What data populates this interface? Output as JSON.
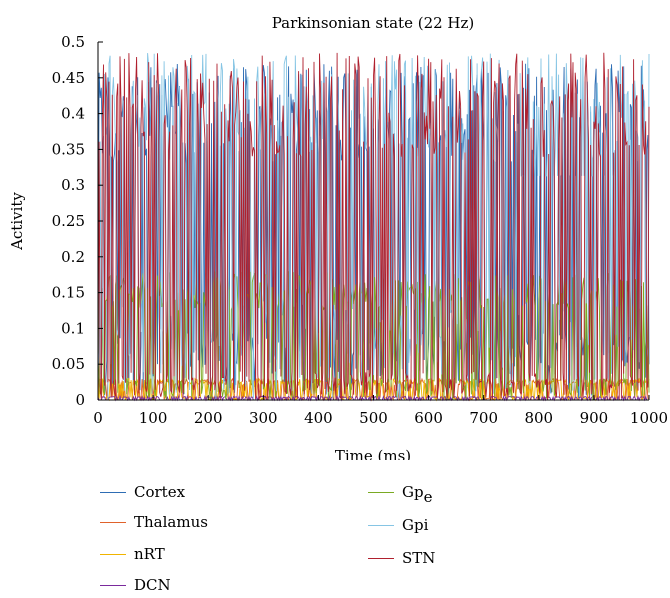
{
  "chart_data": {
    "type": "line",
    "title": "Parkinsonian state (22 Hz)",
    "xlabel": "Time (ms)",
    "ylabel": "Activity",
    "xlim": [
      0,
      1000
    ],
    "ylim": [
      0,
      0.5
    ],
    "x_ticks": [
      "0",
      "100",
      "200",
      "300",
      "400",
      "500",
      "600",
      "700",
      "800",
      "900",
      "1000"
    ],
    "y_ticks": [
      "0",
      "0.05",
      "0.1",
      "0.15",
      "0.2",
      "0.25",
      "0.3",
      "0.35",
      "0.4",
      "0.45",
      "0.5"
    ],
    "grid": false,
    "legend_position": "bottom",
    "series": [
      {
        "name": "Cortex",
        "color": "#2e6db4",
        "peak": 0.47,
        "base": 0.1
      },
      {
        "name": "Thalamus",
        "color": "#e0622b",
        "peak": 0.03,
        "base": 0.005
      },
      {
        "name": "nRT",
        "color": "#f0b400",
        "peak": 0.03,
        "base": 0.005
      },
      {
        "name": "DCN",
        "color": "#7a2a9c",
        "peak": 0.005,
        "base": 0.0
      },
      {
        "name": "Gp",
        "name_sub": "e",
        "color": "#7aaa23",
        "peak": 0.18,
        "base": 0.03
      },
      {
        "name": "Gpi",
        "color": "#86c5e4",
        "peak": 0.485,
        "base": 0.14
      },
      {
        "name": "STN",
        "color": "#b0202e",
        "peak": 0.485,
        "base": 0.04
      }
    ]
  }
}
